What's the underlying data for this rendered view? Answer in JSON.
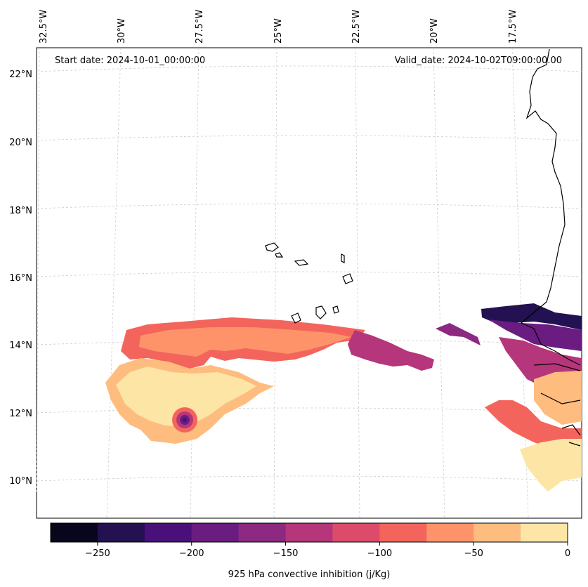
{
  "map": {
    "start_date": "Start date: 2024-10-01_00:00:00",
    "valid_date": "Valid_date: 2024-10-02T09:00:00.00",
    "lon_labels": [
      "32.5°W",
      "30°W",
      "27.5°W",
      "25°W",
      "22.5°W",
      "20°W",
      "17.5°W"
    ],
    "lat_labels": [
      "22°N",
      "20°N",
      "18°N",
      "16°N",
      "14°N",
      "12°N",
      "10°N"
    ],
    "gridlines": true
  },
  "colorbar": {
    "label": "925 hPa convective inhibition (j/Kg)",
    "ticks": [
      "−250",
      "−200",
      "−150",
      "−100",
      "−50",
      "0"
    ],
    "levels": [
      -275,
      -250,
      -225,
      -200,
      -175,
      -150,
      -125,
      -100,
      -75,
      -50,
      -25,
      0
    ],
    "colors": [
      "#07061c",
      "#231151",
      "#4a1079",
      "#6a1c81",
      "#8c2981",
      "#b5367a",
      "#dc4b6a",
      "#f3655c",
      "#fe9369",
      "#febc7e",
      "#fde5a5"
    ]
  },
  "field": {
    "colormap": "magma",
    "features": [
      "cin-core-west",
      "cin-band-central",
      "cin-patch-coastal"
    ]
  }
}
